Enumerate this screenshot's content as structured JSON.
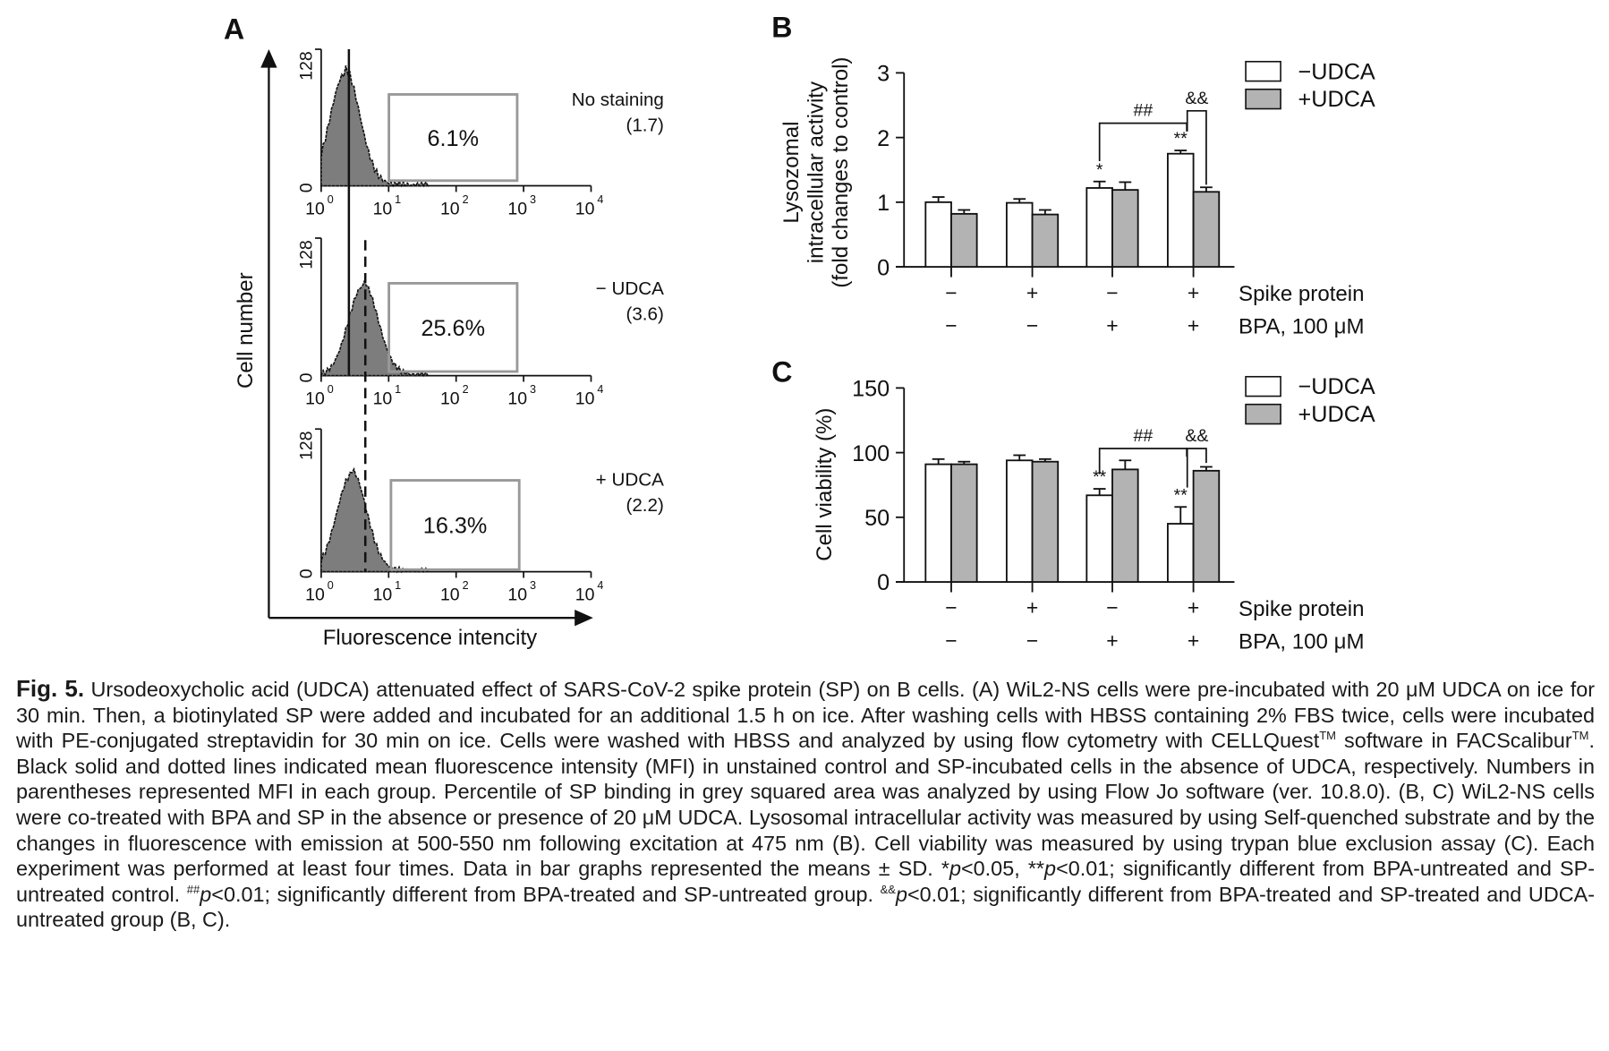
{
  "panel_A": {
    "letter": "A",
    "y_axis_label": "Cell number",
    "x_axis_label": "Fluorescence intencity",
    "y_ticks": [
      "0",
      "128"
    ],
    "x_ticks": [
      "10",
      "10",
      "10",
      "10",
      "10"
    ],
    "x_tick_exponents": [
      "0",
      "1",
      "2",
      "3",
      "4"
    ],
    "histograms": [
      {
        "name": "No staining",
        "mfi": "(1.7)",
        "gate_percent": "6.1%",
        "mean_line": "solid"
      },
      {
        "name": "− UDCA",
        "mfi": "(3.6)",
        "gate_percent": "25.6%",
        "mean_line": "solid+dashed"
      },
      {
        "name": "+ UDCA",
        "mfi": "(2.2)",
        "gate_percent": "16.3%",
        "mean_line": "dashed"
      }
    ]
  },
  "chart_data": [
    {
      "panel": "B",
      "type": "bar",
      "title": "",
      "ylabel_lines": [
        "Lysozomal",
        "intracellular activity",
        "(fold changes to control)"
      ],
      "xlabel": "",
      "ylim": [
        0,
        3
      ],
      "y_ticks": [
        "0",
        "1",
        "2",
        "3"
      ],
      "categories": [
        "SP−/BPA−",
        "SP+/BPA−",
        "SP−/BPA+",
        "SP+/BPA+"
      ],
      "condition_rows": [
        {
          "label": "Spike protein",
          "values": [
            "−",
            "+",
            "−",
            "+"
          ]
        },
        {
          "label": "BPA, 100 μM",
          "values": [
            "−",
            "−",
            "+",
            "+"
          ]
        }
      ],
      "series": [
        {
          "name": "−UDCA",
          "color": "#ffffff",
          "values": [
            1.0,
            0.99,
            1.22,
            1.75
          ],
          "errors": [
            0.08,
            0.06,
            0.1,
            0.05
          ]
        },
        {
          "name": "+UDCA",
          "color": "#b3b3b3",
          "values": [
            0.82,
            0.81,
            1.19,
            1.16
          ],
          "errors": [
            0.06,
            0.07,
            0.12,
            0.07
          ]
        }
      ],
      "significance": [
        {
          "group": 2,
          "series": 0,
          "mark": "*"
        },
        {
          "group": 3,
          "series": 0,
          "mark": "**"
        }
      ],
      "brackets": [
        {
          "from": [
            2,
            0
          ],
          "to": [
            3,
            0
          ],
          "mark": "##"
        },
        {
          "from": [
            3,
            0
          ],
          "to": [
            3,
            1
          ],
          "mark": "&&"
        }
      ],
      "legend": [
        "−UDCA",
        "+UDCA"
      ],
      "legend_position": "top-right"
    },
    {
      "panel": "C",
      "type": "bar",
      "title": "",
      "ylabel_lines": [
        "Cell viability (%)"
      ],
      "xlabel": "",
      "ylim": [
        0,
        150
      ],
      "y_ticks": [
        "0",
        "50",
        "100",
        "150"
      ],
      "categories": [
        "SP−/BPA−",
        "SP+/BPA−",
        "SP−/BPA+",
        "SP+/BPA+"
      ],
      "condition_rows": [
        {
          "label": "Spike protein",
          "values": [
            "−",
            "+",
            "−",
            "+"
          ]
        },
        {
          "label": "BPA, 100 μM",
          "values": [
            "−",
            "−",
            "+",
            "+"
          ]
        }
      ],
      "series": [
        {
          "name": "−UDCA",
          "color": "#ffffff",
          "values": [
            91,
            94,
            67,
            45
          ],
          "errors": [
            4,
            4,
            5,
            13
          ]
        },
        {
          "name": "+UDCA",
          "color": "#b3b3b3",
          "values": [
            91,
            93,
            87,
            86
          ],
          "errors": [
            2,
            2,
            7,
            3
          ]
        }
      ],
      "significance": [
        {
          "group": 2,
          "series": 0,
          "mark": "**"
        },
        {
          "group": 3,
          "series": 0,
          "mark": "**"
        }
      ],
      "brackets": [
        {
          "from": [
            2,
            0
          ],
          "to": [
            3,
            0
          ],
          "mark": "##"
        },
        {
          "from": [
            3,
            0
          ],
          "to": [
            3,
            1
          ],
          "mark": "&&"
        }
      ],
      "legend": [
        "−UDCA",
        "+UDCA"
      ],
      "legend_position": "top-right"
    }
  ],
  "caption": {
    "fig_label": "Fig. 5.",
    "s1": " Ursodeoxycholic acid (UDCA) attenuated effect of SARS-CoV-2 spike protein (SP) on B cells. (A) WiL2-NS cells were pre-incubated with 20 μM UDCA on ice for 30 min. Then, a biotinylated SP were added and incubated for an additional 1.5 h on ice. After washing cells with HBSS containing 2% FBS twice, cells were incubated with PE-conjugated streptavidin for 30 min on ice. Cells were washed with HBSS and analyzed by using flow cytometry with CELLQuest",
    "tm1": "TM",
    "s2": " software in FACScalibur",
    "tm2": "TM",
    "s3": ". Black solid and dotted lines indicated mean fluorescence intensity (MFI) in unstained control and SP-incubated cells in the absence of UDCA, respectively. Numbers in parentheses represented MFI in each group. Percentile of SP binding in grey squared area was analyzed by using Flow Jo software (ver. 10.8.0). (B, C) WiL2-NS cells were co-treated with BPA and SP in the absence or presence of 20 μM UDCA. Lysosomal intracellular activity was measured by using Self-quenched substrate and by the changes in fluorescence with emission at 500-550 nm following excitation at 475 nm (B). Cell viability was measured by using trypan blue exclusion assay (C). Each experiment was performed at least four times. Data in bar graphs represented the means ± SD. *",
    "p1": "p",
    "s4": "<0.05, **",
    "p2": "p",
    "s5": "<0.01; significantly different from BPA-untreated and SP-untreated control. ",
    "hash": "##",
    "p3": "p",
    "s6": "<0.01; significantly different from BPA-treated and SP-untreated group. ",
    "amp": "&&",
    "p4": "p",
    "s7": "<0.01; significantly different from BPA-treated and SP-treated and UDCA-untreated group (B, C)."
  }
}
